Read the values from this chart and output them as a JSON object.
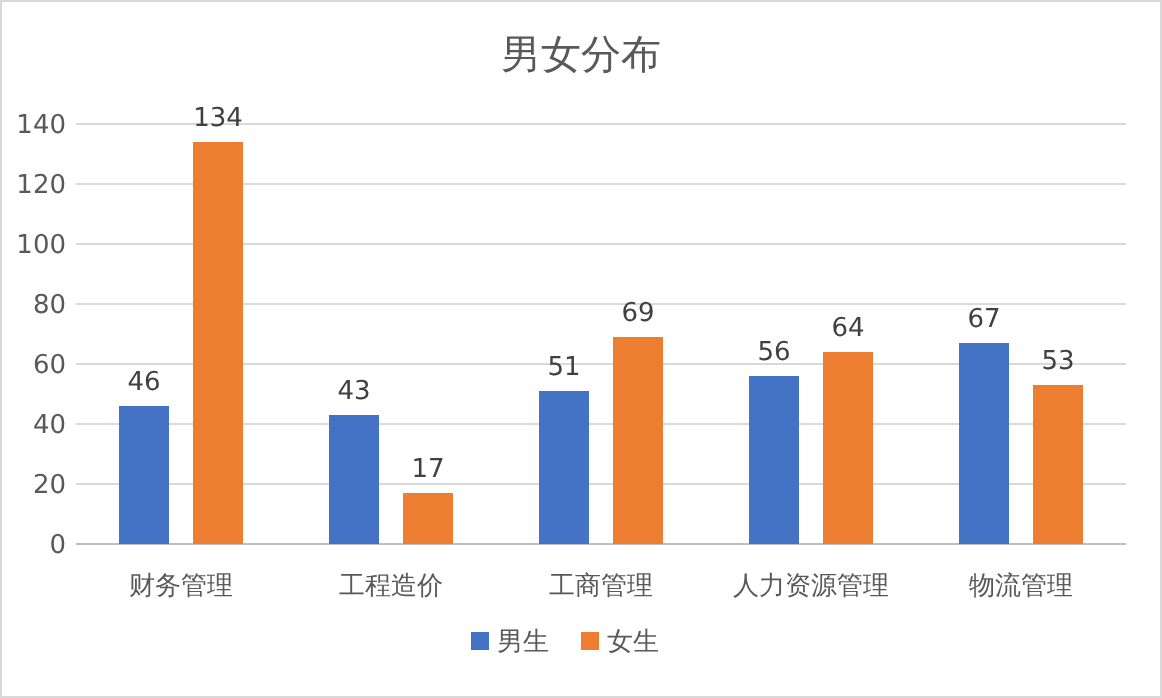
{
  "chart_data": {
    "type": "bar",
    "title": "男女分布",
    "categories": [
      "财务管理",
      "工程造价",
      "工商管理",
      "人力资源管理",
      "物流管理"
    ],
    "series": [
      {
        "name": "男生",
        "color": "#4472c4",
        "values": [
          46,
          43,
          51,
          56,
          67
        ]
      },
      {
        "name": "女生",
        "color": "#ed7d31",
        "values": [
          134,
          17,
          69,
          64,
          53
        ]
      }
    ],
    "ylim": [
      0,
      140
    ],
    "yticks": [
      0,
      20,
      40,
      60,
      80,
      100,
      120,
      140
    ],
    "grid": "y",
    "legend": "bottom",
    "data_labels": true
  }
}
